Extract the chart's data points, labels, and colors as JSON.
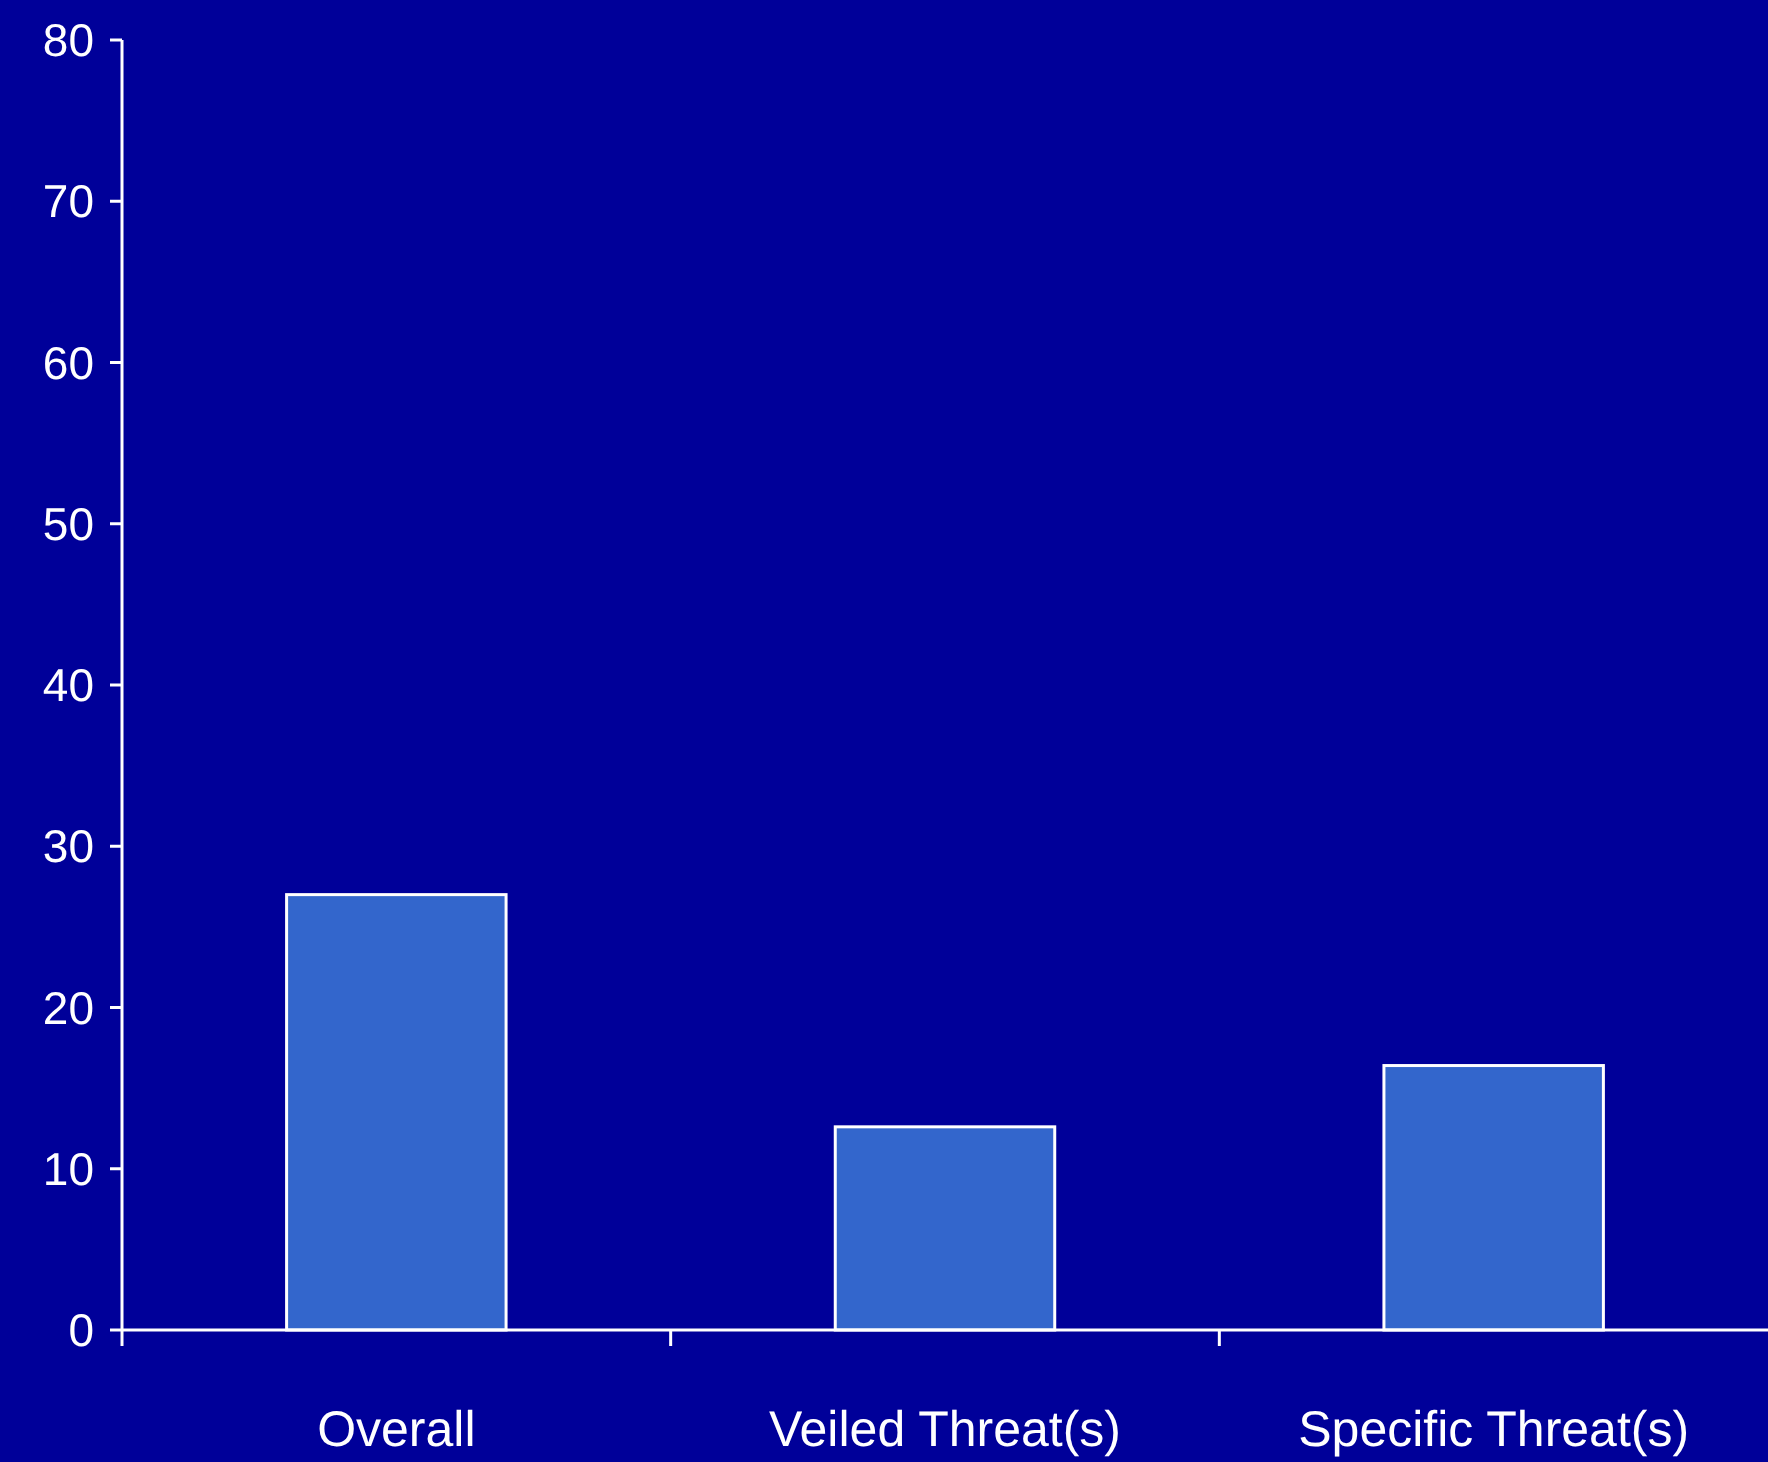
{
  "chart_data": {
    "type": "bar",
    "categories": [
      "Overall",
      "Veiled Threat(s)",
      "Specific Threat(s)"
    ],
    "values": [
      27,
      12.6,
      16.4
    ],
    "color": "#3366cc",
    "ylim": [
      0,
      80
    ],
    "yticks": [
      0,
      10,
      20,
      30,
      40,
      50,
      60,
      70,
      80
    ],
    "grid": false
  }
}
